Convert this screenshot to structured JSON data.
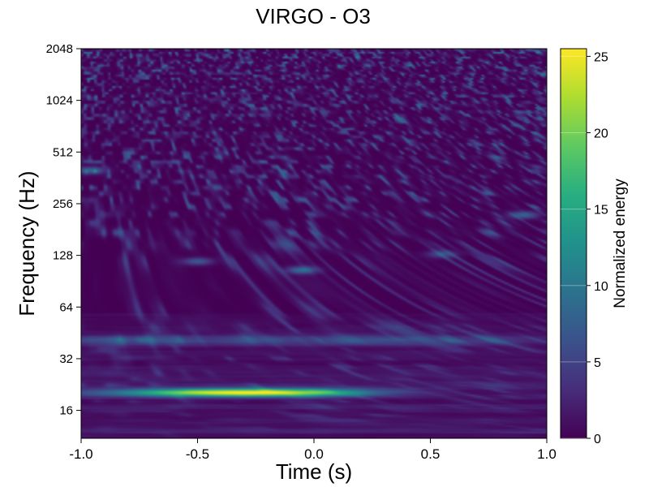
{
  "chart_data": {
    "type": "heatmap",
    "title": "VIRGO - O3",
    "xlabel": "Time (s)",
    "ylabel": "Frequency (Hz)",
    "colorbar_label": "Normalized energy",
    "colormap": "viridis",
    "xlim": [
      -1.0,
      1.0
    ],
    "ylim": [
      11,
      2048
    ],
    "yscale": "log2",
    "xticks": [
      -1.0,
      -0.5,
      0.0,
      0.5,
      1.0
    ],
    "xtick_labels": [
      "-1.0",
      "-0.5",
      "0.0",
      "0.5",
      "1.0"
    ],
    "yticks": [
      16,
      32,
      64,
      128,
      256,
      512,
      1024,
      2048
    ],
    "ytick_labels": [
      "16",
      "32",
      "64",
      "128",
      "256",
      "512",
      "1024",
      "2048"
    ],
    "clim": [
      0,
      25.5
    ],
    "colorbar_ticks": [
      0,
      5,
      10,
      15,
      20,
      25
    ],
    "colorbar_tick_labels": [
      "0",
      "5",
      "10",
      "15",
      "20",
      "25"
    ],
    "features": [
      {
        "name": "chirp track",
        "freq_hz": 20.3,
        "time_start_s": -1.0,
        "time_end_s": 0.5,
        "peak_energy": 25.5
      },
      {
        "name": "low-frequency line",
        "freq_hz": 41,
        "time_start_s": -1.0,
        "time_end_s": 1.0,
        "peak_energy": 6
      },
      {
        "name": "blip",
        "freq_hz": 105,
        "time_s": -0.05,
        "peak_energy": 9
      },
      {
        "name": "blip",
        "freq_hz": 118,
        "time_s": -0.5,
        "peak_energy": 7
      },
      {
        "name": "blip",
        "freq_hz": 130,
        "time_s": 0.55,
        "peak_energy": 6
      },
      {
        "name": "blip",
        "freq_hz": 220,
        "time_s": 0.9,
        "peak_energy": 8
      },
      {
        "name": "blip",
        "freq_hz": 400,
        "time_s": -0.96,
        "peak_energy": 8
      }
    ]
  }
}
